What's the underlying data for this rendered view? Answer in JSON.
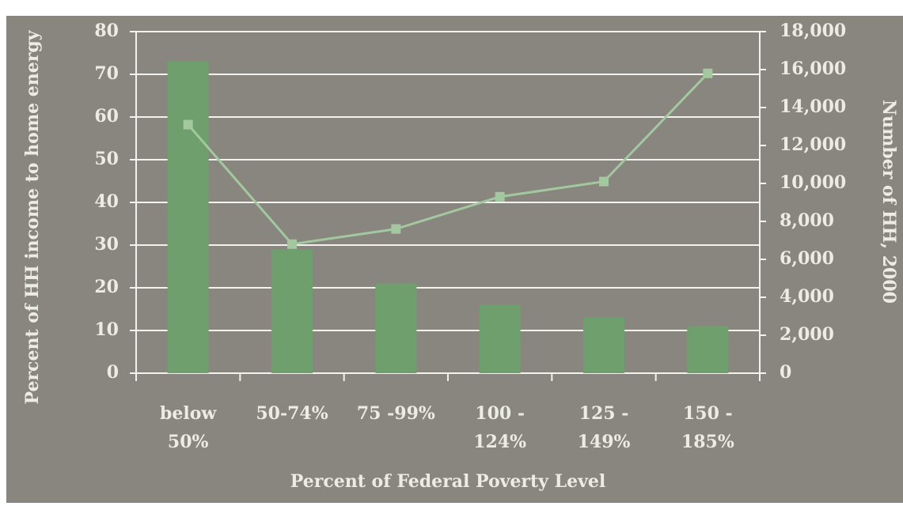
{
  "chart_data": {
    "type": "bar_line",
    "categories": [
      [
        "below",
        "50%"
      ],
      [
        "50-74%"
      ],
      [
        "75 -99%"
      ],
      [
        "100 -",
        "124%"
      ],
      [
        "125 -",
        "149%"
      ],
      [
        "150 -",
        "185%"
      ]
    ],
    "x_label": "Percent of Federal Poverty Level",
    "y_label": "Percent of HH income to home energy",
    "y2_label": "Number of HH, 2000",
    "series": [
      {
        "type": "bar",
        "color": "#6e9f6d",
        "values": [
          73,
          29,
          21,
          16,
          13,
          11
        ]
      },
      {
        "type": "line",
        "axis": "y2",
        "color": "#a3c8a0",
        "values": [
          13100,
          6800,
          7600,
          9300,
          10100,
          15800
        ]
      }
    ],
    "ylim": [
      0,
      80
    ],
    "yticks": [
      0,
      10,
      20,
      30,
      40,
      50,
      60,
      70,
      80
    ],
    "y2lim": [
      0,
      18000
    ],
    "y2ticks": [
      0,
      {
        "value": 2000,
        "label": "2,000"
      },
      {
        "value": 4000,
        "label": "4,000"
      },
      {
        "value": 6000,
        "label": "6,000"
      },
      {
        "value": 8000,
        "label": "8,000"
      },
      {
        "value": 10000,
        "label": "10,000"
      },
      {
        "value": 12000,
        "label": "12,000"
      },
      {
        "value": 14000,
        "label": "14,000"
      },
      {
        "value": 16000,
        "label": "16,000"
      },
      {
        "value": 18000,
        "label": "18,000"
      }
    ],
    "grid": true
  }
}
